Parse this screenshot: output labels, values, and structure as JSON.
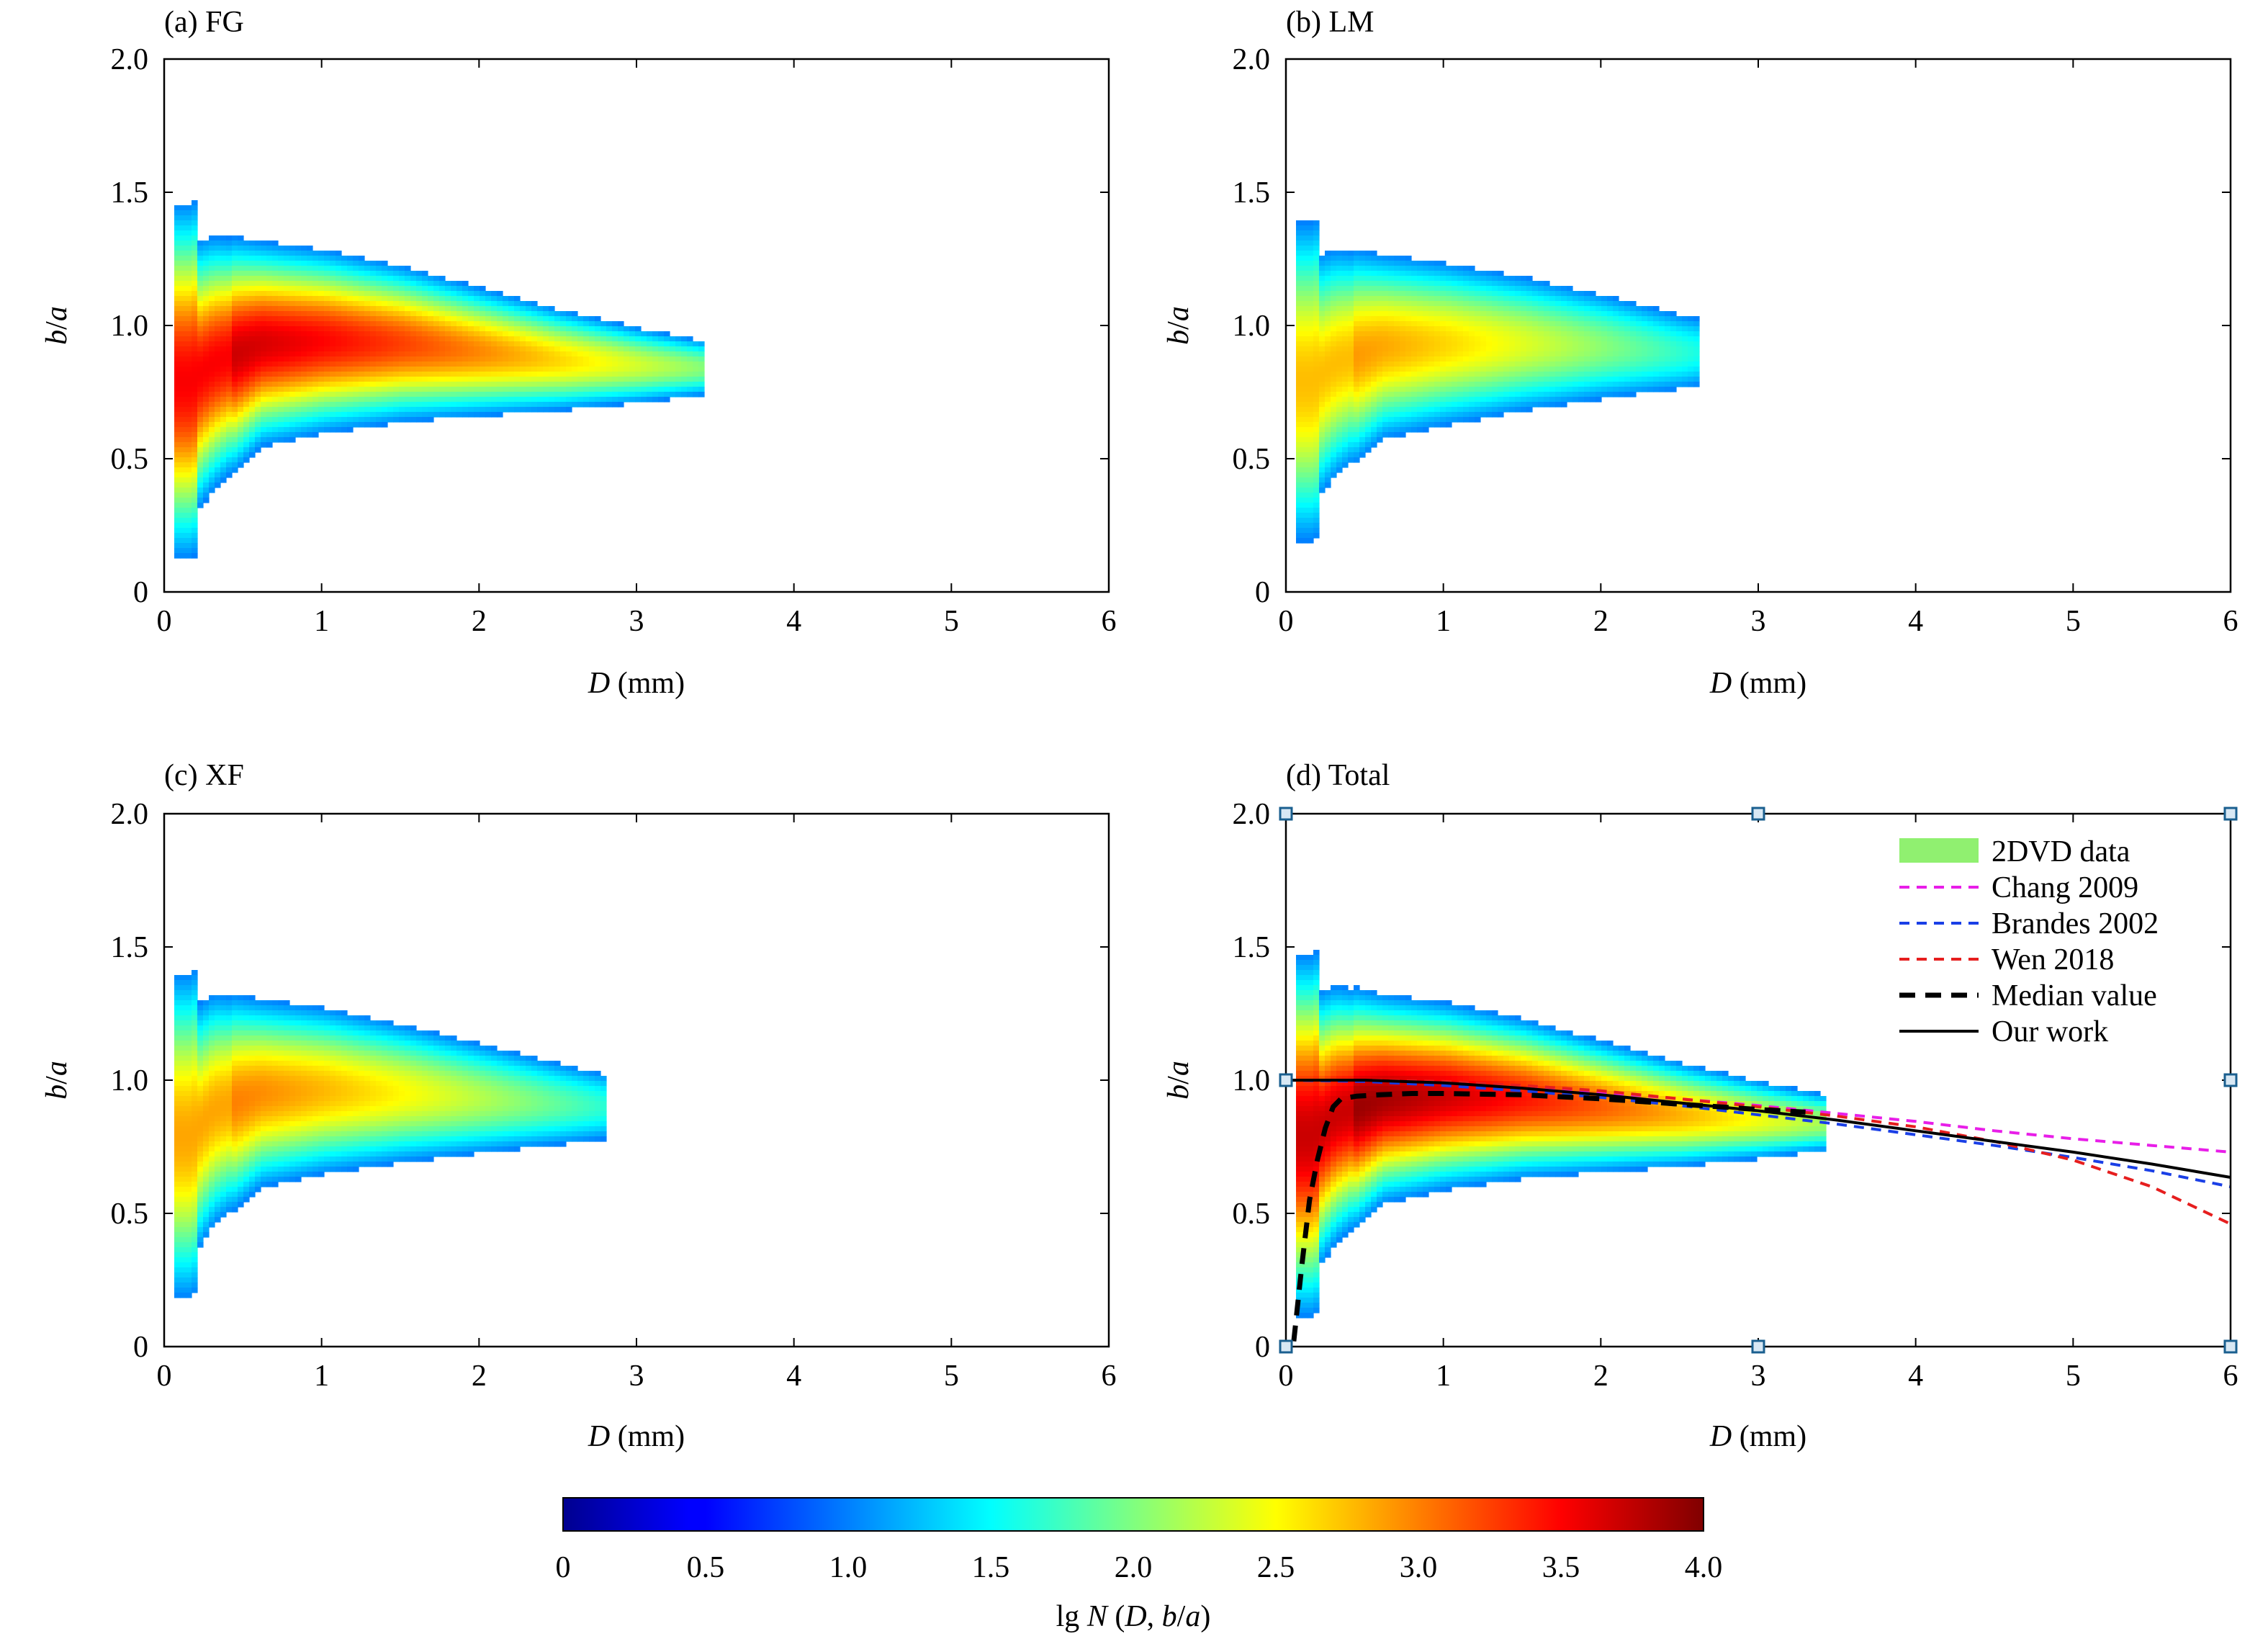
{
  "figure": {
    "colorbar": {
      "label_prefix": "lg ",
      "label_N": "N",
      "label_mid": " (",
      "label_D": "D",
      "label_sep": ", ",
      "label_b": "b",
      "label_slash": "/",
      "label_a": "a",
      "label_close": ")",
      "ticks": [
        "0",
        "0.5",
        "1.0",
        "1.5",
        "2.0",
        "2.5",
        "3.0",
        "3.5",
        "4.0"
      ],
      "range": [
        0,
        4.0
      ],
      "colormap": "jet"
    },
    "axis_labels": {
      "x_var": "D",
      "x_unit": " (mm)",
      "y_num": "b",
      "y_slash": "/",
      "y_den": "a"
    }
  },
  "chart_data": [
    {
      "type": "heatmap",
      "title": "(a) FG",
      "xlim": [
        0,
        6
      ],
      "ylim": [
        0,
        2.0
      ],
      "xticks": [
        "0",
        "1",
        "2",
        "3",
        "4",
        "5",
        "6"
      ],
      "yticks": [
        "0",
        "0.5",
        "1.0",
        "1.5",
        "2.0"
      ],
      "distribution": {
        "d_max": 3.4,
        "center_ratio": [
          [
            0.15,
            0.8
          ],
          [
            0.3,
            0.87
          ],
          [
            0.6,
            0.94
          ],
          [
            1.0,
            0.95
          ],
          [
            1.5,
            0.94
          ],
          [
            2.0,
            0.91
          ],
          [
            2.5,
            0.88
          ],
          [
            3.0,
            0.86
          ],
          [
            3.4,
            0.85
          ]
        ],
        "peak_lgN": 3.7,
        "notes": "density concentrated near D 0.2-1.5 mm, b/a ~0.9"
      }
    },
    {
      "type": "heatmap",
      "title": "(b) LM",
      "xlim": [
        0,
        6
      ],
      "ylim": [
        0,
        2.0
      ],
      "xticks": [
        "0",
        "1",
        "2",
        "3",
        "4",
        "5",
        "6"
      ],
      "yticks": [
        "0",
        "0.5",
        "1.0",
        "1.5",
        "2.0"
      ],
      "distribution": {
        "d_max": 2.6,
        "center_ratio": [
          [
            0.15,
            0.8
          ],
          [
            0.3,
            0.87
          ],
          [
            0.6,
            0.93
          ],
          [
            1.0,
            0.94
          ],
          [
            1.5,
            0.94
          ],
          [
            2.0,
            0.93
          ],
          [
            2.5,
            0.91
          ]
        ],
        "peak_lgN": 2.9
      }
    },
    {
      "type": "heatmap",
      "title": "(c) XF",
      "xlim": [
        0,
        6
      ],
      "ylim": [
        0,
        2.0
      ],
      "xticks": [
        "0",
        "1",
        "2",
        "3",
        "4",
        "5",
        "6"
      ],
      "yticks": [
        "0",
        "0.5",
        "1.0",
        "1.5",
        "2.0"
      ],
      "distribution": {
        "d_max": 2.8,
        "center_ratio": [
          [
            0.15,
            0.8
          ],
          [
            0.3,
            0.9
          ],
          [
            0.6,
            0.96
          ],
          [
            1.0,
            0.97
          ],
          [
            1.5,
            0.96
          ],
          [
            2.0,
            0.94
          ],
          [
            2.5,
            0.92
          ],
          [
            2.8,
            0.91
          ]
        ],
        "peak_lgN": 3.0
      }
    },
    {
      "type": "heatmap",
      "title": "(d) Total",
      "xlim": [
        0,
        6
      ],
      "ylim": [
        0,
        2.0
      ],
      "xticks": [
        "0",
        "1",
        "2",
        "3",
        "4",
        "5",
        "6"
      ],
      "yticks": [
        "0",
        "0.5",
        "1.0",
        "1.5",
        "2.0"
      ],
      "distribution": {
        "d_max": 3.4,
        "center_ratio": [
          [
            0.15,
            0.8
          ],
          [
            0.3,
            0.88
          ],
          [
            0.6,
            0.94
          ],
          [
            1.0,
            0.95
          ],
          [
            1.5,
            0.94
          ],
          [
            2.0,
            0.91
          ],
          [
            2.5,
            0.88
          ],
          [
            3.0,
            0.86
          ],
          [
            3.4,
            0.85
          ]
        ],
        "peak_lgN": 3.9
      },
      "series": [
        {
          "name": "Chang 2009",
          "color": "#e81ee8",
          "style": "dashed",
          "x": [
            0,
            0.5,
            1,
            1.5,
            2,
            2.5,
            3,
            3.5,
            4,
            4.5,
            5,
            5.5,
            6
          ],
          "y": [
            1.0,
            1.0,
            0.99,
            0.975,
            0.955,
            0.93,
            0.905,
            0.875,
            0.845,
            0.81,
            0.78,
            0.755,
            0.73
          ]
        },
        {
          "name": "Brandes 2002",
          "color": "#1a3fe6",
          "style": "dashed",
          "x": [
            0,
            0.5,
            1,
            1.5,
            2,
            2.5,
            3,
            3.5,
            4,
            4.5,
            5,
            5.5,
            6
          ],
          "y": [
            1.0,
            0.995,
            0.98,
            0.96,
            0.935,
            0.905,
            0.87,
            0.835,
            0.795,
            0.755,
            0.71,
            0.66,
            0.6
          ]
        },
        {
          "name": "Wen 2018",
          "color": "#e61e1e",
          "style": "dashed",
          "x": [
            0,
            0.5,
            1,
            1.5,
            2,
            2.5,
            3,
            3.5,
            4,
            4.5,
            5,
            5.5,
            6
          ],
          "y": [
            1.0,
            1.0,
            0.995,
            0.98,
            0.96,
            0.93,
            0.9,
            0.865,
            0.825,
            0.77,
            0.7,
            0.6,
            0.46
          ]
        },
        {
          "name": "Median value",
          "color": "#000000",
          "style": "bold-dashed",
          "x": [
            0.05,
            0.1,
            0.15,
            0.2,
            0.25,
            0.3,
            0.35,
            0.45,
            0.6,
            0.8,
            1.0,
            1.5,
            2.0,
            2.5,
            3.0,
            3.3
          ],
          "y": [
            0.02,
            0.3,
            0.55,
            0.7,
            0.82,
            0.9,
            0.93,
            0.94,
            0.945,
            0.95,
            0.95,
            0.945,
            0.93,
            0.91,
            0.89,
            0.88
          ]
        },
        {
          "name": "Our work",
          "color": "#000000",
          "style": "solid",
          "x": [
            0,
            0.5,
            1,
            1.5,
            2,
            2.5,
            3,
            3.5,
            4,
            4.5,
            5,
            5.5,
            6
          ],
          "y": [
            1.0,
            1.0,
            0.99,
            0.97,
            0.945,
            0.915,
            0.885,
            0.85,
            0.81,
            0.77,
            0.73,
            0.685,
            0.635
          ]
        }
      ],
      "legend": {
        "position": "top-right",
        "entries": [
          {
            "label": "2DVD data",
            "color": "#90f070",
            "style": "patch"
          },
          {
            "label": "Chang 2009",
            "color": "#e81ee8",
            "style": "dashed"
          },
          {
            "label": "Brandes 2002",
            "color": "#1a3fe6",
            "style": "dashed"
          },
          {
            "label": "Wen 2018",
            "color": "#e61e1e",
            "style": "dashed"
          },
          {
            "label": "Median value",
            "color": "#000000",
            "style": "bold-dashed"
          },
          {
            "label": "Our work",
            "color": "#000000",
            "style": "solid"
          }
        ]
      },
      "selection_handles": true
    }
  ]
}
